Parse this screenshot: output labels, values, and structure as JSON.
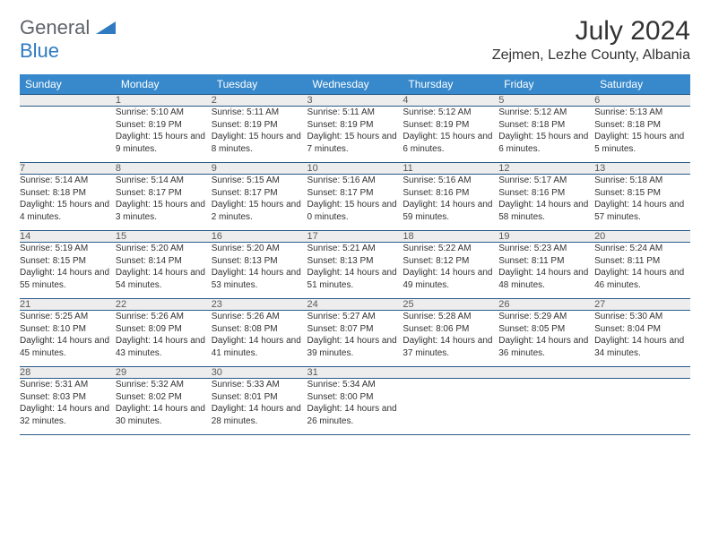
{
  "logo": {
    "text1": "General",
    "text2": "Blue"
  },
  "title": "July 2024",
  "location": "Zejmen, Lezhe County, Albania",
  "colors": {
    "header_bg": "#3789cc",
    "header_text": "#ffffff",
    "daynum_bg": "#ededed",
    "border": "#2a5b88",
    "logo_gray": "#5f6368",
    "logo_blue": "#2f7ac0",
    "text": "#323232"
  },
  "day_headers": [
    "Sunday",
    "Monday",
    "Tuesday",
    "Wednesday",
    "Thursday",
    "Friday",
    "Saturday"
  ],
  "weeks": [
    {
      "nums": [
        "",
        "1",
        "2",
        "3",
        "4",
        "5",
        "6"
      ],
      "cells": [
        null,
        {
          "sunrise": "5:10 AM",
          "sunset": "8:19 PM",
          "daylight": "15 hours and 9 minutes."
        },
        {
          "sunrise": "5:11 AM",
          "sunset": "8:19 PM",
          "daylight": "15 hours and 8 minutes."
        },
        {
          "sunrise": "5:11 AM",
          "sunset": "8:19 PM",
          "daylight": "15 hours and 7 minutes."
        },
        {
          "sunrise": "5:12 AM",
          "sunset": "8:19 PM",
          "daylight": "15 hours and 6 minutes."
        },
        {
          "sunrise": "5:12 AM",
          "sunset": "8:18 PM",
          "daylight": "15 hours and 6 minutes."
        },
        {
          "sunrise": "5:13 AM",
          "sunset": "8:18 PM",
          "daylight": "15 hours and 5 minutes."
        }
      ]
    },
    {
      "nums": [
        "7",
        "8",
        "9",
        "10",
        "11",
        "12",
        "13"
      ],
      "cells": [
        {
          "sunrise": "5:14 AM",
          "sunset": "8:18 PM",
          "daylight": "15 hours and 4 minutes."
        },
        {
          "sunrise": "5:14 AM",
          "sunset": "8:17 PM",
          "daylight": "15 hours and 3 minutes."
        },
        {
          "sunrise": "5:15 AM",
          "sunset": "8:17 PM",
          "daylight": "15 hours and 2 minutes."
        },
        {
          "sunrise": "5:16 AM",
          "sunset": "8:17 PM",
          "daylight": "15 hours and 0 minutes."
        },
        {
          "sunrise": "5:16 AM",
          "sunset": "8:16 PM",
          "daylight": "14 hours and 59 minutes."
        },
        {
          "sunrise": "5:17 AM",
          "sunset": "8:16 PM",
          "daylight": "14 hours and 58 minutes."
        },
        {
          "sunrise": "5:18 AM",
          "sunset": "8:15 PM",
          "daylight": "14 hours and 57 minutes."
        }
      ]
    },
    {
      "nums": [
        "14",
        "15",
        "16",
        "17",
        "18",
        "19",
        "20"
      ],
      "cells": [
        {
          "sunrise": "5:19 AM",
          "sunset": "8:15 PM",
          "daylight": "14 hours and 55 minutes."
        },
        {
          "sunrise": "5:20 AM",
          "sunset": "8:14 PM",
          "daylight": "14 hours and 54 minutes."
        },
        {
          "sunrise": "5:20 AM",
          "sunset": "8:13 PM",
          "daylight": "14 hours and 53 minutes."
        },
        {
          "sunrise": "5:21 AM",
          "sunset": "8:13 PM",
          "daylight": "14 hours and 51 minutes."
        },
        {
          "sunrise": "5:22 AM",
          "sunset": "8:12 PM",
          "daylight": "14 hours and 49 minutes."
        },
        {
          "sunrise": "5:23 AM",
          "sunset": "8:11 PM",
          "daylight": "14 hours and 48 minutes."
        },
        {
          "sunrise": "5:24 AM",
          "sunset": "8:11 PM",
          "daylight": "14 hours and 46 minutes."
        }
      ]
    },
    {
      "nums": [
        "21",
        "22",
        "23",
        "24",
        "25",
        "26",
        "27"
      ],
      "cells": [
        {
          "sunrise": "5:25 AM",
          "sunset": "8:10 PM",
          "daylight": "14 hours and 45 minutes."
        },
        {
          "sunrise": "5:26 AM",
          "sunset": "8:09 PM",
          "daylight": "14 hours and 43 minutes."
        },
        {
          "sunrise": "5:26 AM",
          "sunset": "8:08 PM",
          "daylight": "14 hours and 41 minutes."
        },
        {
          "sunrise": "5:27 AM",
          "sunset": "8:07 PM",
          "daylight": "14 hours and 39 minutes."
        },
        {
          "sunrise": "5:28 AM",
          "sunset": "8:06 PM",
          "daylight": "14 hours and 37 minutes."
        },
        {
          "sunrise": "5:29 AM",
          "sunset": "8:05 PM",
          "daylight": "14 hours and 36 minutes."
        },
        {
          "sunrise": "5:30 AM",
          "sunset": "8:04 PM",
          "daylight": "14 hours and 34 minutes."
        }
      ]
    },
    {
      "nums": [
        "28",
        "29",
        "30",
        "31",
        "",
        "",
        ""
      ],
      "cells": [
        {
          "sunrise": "5:31 AM",
          "sunset": "8:03 PM",
          "daylight": "14 hours and 32 minutes."
        },
        {
          "sunrise": "5:32 AM",
          "sunset": "8:02 PM",
          "daylight": "14 hours and 30 minutes."
        },
        {
          "sunrise": "5:33 AM",
          "sunset": "8:01 PM",
          "daylight": "14 hours and 28 minutes."
        },
        {
          "sunrise": "5:34 AM",
          "sunset": "8:00 PM",
          "daylight": "14 hours and 26 minutes."
        },
        null,
        null,
        null
      ]
    }
  ],
  "labels": {
    "sunrise": "Sunrise: ",
    "sunset": "Sunset: ",
    "daylight": "Daylight: "
  }
}
